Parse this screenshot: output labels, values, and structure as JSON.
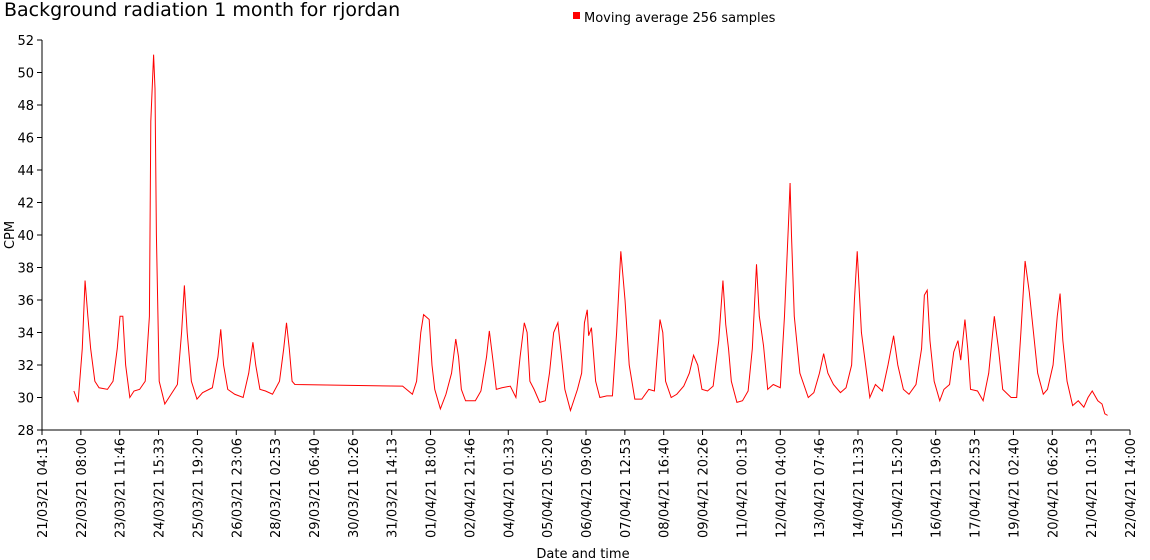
{
  "chart_data": {
    "type": "line",
    "title": "Background radiation 1 month for rjordan",
    "xlabel": "Date and time",
    "ylabel": "CPM",
    "legend": "top",
    "ylim": [
      28,
      52
    ],
    "yticks": [
      28,
      30,
      32,
      34,
      36,
      38,
      40,
      42,
      44,
      46,
      48,
      50,
      52
    ],
    "xlim": [
      "2021-03-21T04:13",
      "2021-04-22T14:00"
    ],
    "xticks": [
      {
        "value": "2021-03-21T04:13",
        "label": "21/03/21 04:13"
      },
      {
        "value": "2021-03-22T08:00",
        "label": "22/03/21 08:00"
      },
      {
        "value": "2021-03-23T11:46",
        "label": "23/03/21 11:46"
      },
      {
        "value": "2021-03-24T15:33",
        "label": "24/03/21 15:33"
      },
      {
        "value": "2021-03-25T19:20",
        "label": "25/03/21 19:20"
      },
      {
        "value": "2021-03-26T23:06",
        "label": "26/03/21 23:06"
      },
      {
        "value": "2021-03-28T02:53",
        "label": "28/03/21 02:53"
      },
      {
        "value": "2021-03-29T06:40",
        "label": "29/03/21 06:40"
      },
      {
        "value": "2021-03-30T10:26",
        "label": "30/03/21 10:26"
      },
      {
        "value": "2021-03-31T14:13",
        "label": "31/03/21 14:13"
      },
      {
        "value": "2021-04-01T18:00",
        "label": "01/04/21 18:00"
      },
      {
        "value": "2021-04-02T21:46",
        "label": "02/04/21 21:46"
      },
      {
        "value": "2021-04-04T01:33",
        "label": "04/04/21 01:33"
      },
      {
        "value": "2021-04-05T05:20",
        "label": "05/04/21 05:20"
      },
      {
        "value": "2021-04-06T09:06",
        "label": "06/04/21 09:06"
      },
      {
        "value": "2021-04-07T12:53",
        "label": "07/04/21 12:53"
      },
      {
        "value": "2021-04-08T16:40",
        "label": "08/04/21 16:40"
      },
      {
        "value": "2021-04-09T20:26",
        "label": "09/04/21 20:26"
      },
      {
        "value": "2021-04-11T00:13",
        "label": "11/04/21 00:13"
      },
      {
        "value": "2021-04-12T04:00",
        "label": "12/04/21 04:00"
      },
      {
        "value": "2021-04-13T07:46",
        "label": "13/04/21 07:46"
      },
      {
        "value": "2021-04-14T11:33",
        "label": "14/04/21 11:33"
      },
      {
        "value": "2021-04-15T15:20",
        "label": "15/04/21 15:20"
      },
      {
        "value": "2021-04-16T19:06",
        "label": "16/04/21 19:06"
      },
      {
        "value": "2021-04-17T22:53",
        "label": "17/04/21 22:53"
      },
      {
        "value": "2021-04-19T02:40",
        "label": "19/04/21 02:40"
      },
      {
        "value": "2021-04-20T06:26",
        "label": "20/04/21 06:26"
      },
      {
        "value": "2021-04-21T10:13",
        "label": "21/04/21 10:13"
      },
      {
        "value": "2021-04-22T14:00",
        "label": "22/04/21 14:00"
      }
    ],
    "x": [
      "2021-03-22T03:00",
      "2021-03-22T06:00",
      "2021-03-22T09:00",
      "2021-03-22T11:00",
      "2021-03-22T13:00",
      "2021-03-22T15:00",
      "2021-03-22T18:00",
      "2021-03-22T21:00",
      "2021-03-23T03:00",
      "2021-03-23T07:00",
      "2021-03-23T10:00",
      "2021-03-23T12:00",
      "2021-03-23T14:00",
      "2021-03-23T16:00",
      "2021-03-23T19:00",
      "2021-03-23T22:00",
      "2021-03-24T02:00",
      "2021-03-24T06:00",
      "2021-03-24T09:00",
      "2021-03-24T10:00",
      "2021-03-24T12:00",
      "2021-03-24T13:00",
      "2021-03-24T14:00",
      "2021-03-24T16:00",
      "2021-03-24T20:00",
      "2021-03-24T23:00",
      "2021-03-25T05:00",
      "2021-03-25T08:00",
      "2021-03-25T10:00",
      "2021-03-25T12:00",
      "2021-03-25T15:00",
      "2021-03-25T19:00",
      "2021-03-25T23:00",
      "2021-03-26T06:00",
      "2021-03-26T10:00",
      "2021-03-26T12:00",
      "2021-03-26T14:00",
      "2021-03-26T17:00",
      "2021-03-26T22:00",
      "2021-03-27T04:00",
      "2021-03-27T08:00",
      "2021-03-27T11:00",
      "2021-03-27T13:00",
      "2021-03-27T16:00",
      "2021-03-27T20:00",
      "2021-03-28T01:00",
      "2021-03-28T06:00",
      "2021-03-28T09:00",
      "2021-03-28T11:00",
      "2021-03-28T13:00",
      "2021-03-28T15:00",
      "2021-03-28T17:00",
      "2021-03-31T21:00",
      "2021-03-31T22:00",
      "2021-04-01T05:00",
      "2021-04-01T08:00",
      "2021-04-01T11:00",
      "2021-04-01T13:00",
      "2021-04-01T17:00",
      "2021-04-01T19:00",
      "2021-04-01T21:00",
      "2021-04-02T01:00",
      "2021-04-02T05:00",
      "2021-04-02T09:00",
      "2021-04-02T12:00",
      "2021-04-02T14:00",
      "2021-04-02T16:00",
      "2021-04-02T19:00",
      "2021-04-03T02:00",
      "2021-04-03T06:00",
      "2021-04-03T10:00",
      "2021-04-03T12:00",
      "2021-04-03T15:00",
      "2021-04-03T17:00",
      "2021-04-03T21:00",
      "2021-04-04T03:00",
      "2021-04-04T07:00",
      "2021-04-04T10:00",
      "2021-04-04T13:00",
      "2021-04-04T15:00",
      "2021-04-04T17:00",
      "2021-04-04T20:00",
      "2021-04-05T00:00",
      "2021-04-05T04:00",
      "2021-04-05T07:00",
      "2021-04-05T10:00",
      "2021-04-05T13:00",
      "2021-04-05T15:00",
      "2021-04-05T18:00",
      "2021-04-05T22:00",
      "2021-04-06T03:00",
      "2021-04-06T06:00",
      "2021-04-06T08:00",
      "2021-04-06T10:00",
      "2021-04-06T11:00",
      "2021-04-06T13:00",
      "2021-04-06T16:00",
      "2021-04-06T19:00",
      "2021-04-07T00:00",
      "2021-04-07T04:00",
      "2021-04-07T07:00",
      "2021-04-07T10:00",
      "2021-04-07T13:00",
      "2021-04-07T16:00",
      "2021-04-07T20:00",
      "2021-04-08T01:00",
      "2021-04-08T06:00",
      "2021-04-08T10:00",
      "2021-04-08T14:00",
      "2021-04-08T16:00",
      "2021-04-08T18:00",
      "2021-04-08T22:00",
      "2021-04-09T02:00",
      "2021-04-09T07:00",
      "2021-04-09T11:00",
      "2021-04-09T14:00",
      "2021-04-09T17:00",
      "2021-04-09T20:00",
      "2021-04-10T00:00",
      "2021-04-10T04:00",
      "2021-04-10T08:00",
      "2021-04-10T11:00",
      "2021-04-10T13:00",
      "2021-04-10T15:00",
      "2021-04-10T17:00",
      "2021-04-10T21:00",
      "2021-04-11T01:00",
      "2021-04-11T05:00",
      "2021-04-11T08:00",
      "2021-04-11T11:00",
      "2021-04-11T13:00",
      "2021-04-11T16:00",
      "2021-04-11T19:00",
      "2021-04-11T23:00",
      "2021-04-12T04:00",
      "2021-04-12T07:00",
      "2021-04-12T10:00",
      "2021-04-12T11:00",
      "2021-04-12T12:00",
      "2021-04-12T14:00",
      "2021-04-12T18:00",
      "2021-04-13T00:00",
      "2021-04-13T04:00",
      "2021-04-13T08:00",
      "2021-04-13T11:00",
      "2021-04-13T14:00",
      "2021-04-13T18:00",
      "2021-04-13T23:00",
      "2021-04-14T03:00",
      "2021-04-14T07:00",
      "2021-04-14T09:00",
      "2021-04-14T11:00",
      "2021-04-14T14:00",
      "2021-04-14T17:00",
      "2021-04-14T20:00",
      "2021-04-15T00:00",
      "2021-04-15T05:00",
      "2021-04-15T09:00",
      "2021-04-15T13:00",
      "2021-04-15T16:00",
      "2021-04-15T20:00",
      "2021-04-16T00:00",
      "2021-04-16T05:00",
      "2021-04-16T09:00",
      "2021-04-16T11:00",
      "2021-04-16T13:00",
      "2021-04-16T15:00",
      "2021-04-16T18:00",
      "2021-04-16T22:00",
      "2021-04-17T01:00",
      "2021-04-17T05:00",
      "2021-04-17T08:00",
      "2021-04-17T11:00",
      "2021-04-17T13:00",
      "2021-04-17T16:00",
      "2021-04-17T18:00",
      "2021-04-17T20:00",
      "2021-04-18T01:00",
      "2021-04-18T05:00",
      "2021-04-18T09:00",
      "2021-04-18T13:00",
      "2021-04-18T16:00",
      "2021-04-18T19:00",
      "2021-04-19T01:00",
      "2021-04-19T05:00",
      "2021-04-19T08:00",
      "2021-04-19T11:00",
      "2021-04-19T14:00",
      "2021-04-19T17:00",
      "2021-04-19T20:00",
      "2021-04-20T00:00",
      "2021-04-20T03:00",
      "2021-04-20T07:00",
      "2021-04-20T10:00",
      "2021-04-20T12:00",
      "2021-04-20T14:00",
      "2021-04-20T17:00",
      "2021-04-20T21:00",
      "2021-04-21T01:00",
      "2021-04-21T05:00",
      "2021-04-21T08:00",
      "2021-04-21T11:00",
      "2021-04-21T15:00",
      "2021-04-21T18:00",
      "2021-04-21T20:00",
      "2021-04-21T22:00"
    ],
    "series": [
      {
        "name": "Moving average 256 samples",
        "color": "#ff0000",
        "values": [
          30.4,
          29.7,
          33,
          37.2,
          35,
          33,
          31,
          30.6,
          30.5,
          31,
          33,
          35,
          35,
          32,
          30,
          30.4,
          30.5,
          31,
          35,
          47,
          51.1,
          49,
          40,
          31,
          29.6,
          30,
          30.8,
          34,
          36.9,
          34,
          31,
          29.9,
          30.3,
          30.6,
          32.5,
          34.2,
          32,
          30.5,
          30.2,
          30,
          31.5,
          33.4,
          32,
          30.5,
          30.4,
          30.2,
          31,
          33,
          34.6,
          33,
          31,
          30.8,
          30.7,
          30.7,
          30.2,
          31,
          34,
          35.1,
          34.8,
          32,
          30.5,
          29.3,
          30.2,
          31.5,
          33.6,
          32.5,
          30.5,
          29.8,
          29.8,
          30.4,
          32.5,
          34.1,
          32,
          30.5,
          30.6,
          30.7,
          30,
          32.5,
          34.6,
          34,
          31,
          30.5,
          29.7,
          29.8,
          31.5,
          34,
          34.6,
          33,
          30.5,
          29.2,
          30.5,
          31.5,
          34.6,
          35.4,
          33.8,
          34.3,
          31,
          30,
          30.1,
          30.1,
          34,
          39,
          36,
          32,
          29.9,
          29.9,
          30.5,
          30.4,
          34.8,
          34,
          31,
          30,
          30.2,
          30.7,
          31.5,
          32.6,
          32,
          30.5,
          30.4,
          30.7,
          33.5,
          37.2,
          34.5,
          33,
          31,
          29.7,
          29.8,
          30.4,
          33,
          38.2,
          35,
          33.2,
          30.5,
          30.8,
          30.6,
          35,
          41,
          43.2,
          40,
          35,
          31.5,
          30,
          30.3,
          31.5,
          32.7,
          31.5,
          30.8,
          30.3,
          30.6,
          32,
          36,
          39,
          34,
          32,
          30,
          30.8,
          30.4,
          32,
          33.8,
          32,
          30.5,
          30.2,
          30.8,
          33,
          36.3,
          36.6,
          33.5,
          31,
          29.8,
          30.5,
          30.8,
          32.8,
          33.5,
          32.3,
          34.8,
          33,
          30.5,
          30.4,
          29.8,
          31.5,
          35,
          33,
          30.5,
          30,
          30,
          34,
          38.4,
          36.5,
          34,
          31.5,
          30.2,
          30.5,
          32,
          35,
          36.4,
          33.5,
          31,
          29.5,
          29.8,
          29.4,
          30,
          30.4,
          29.8,
          29.6,
          29,
          28.9
        ]
      }
    ]
  }
}
